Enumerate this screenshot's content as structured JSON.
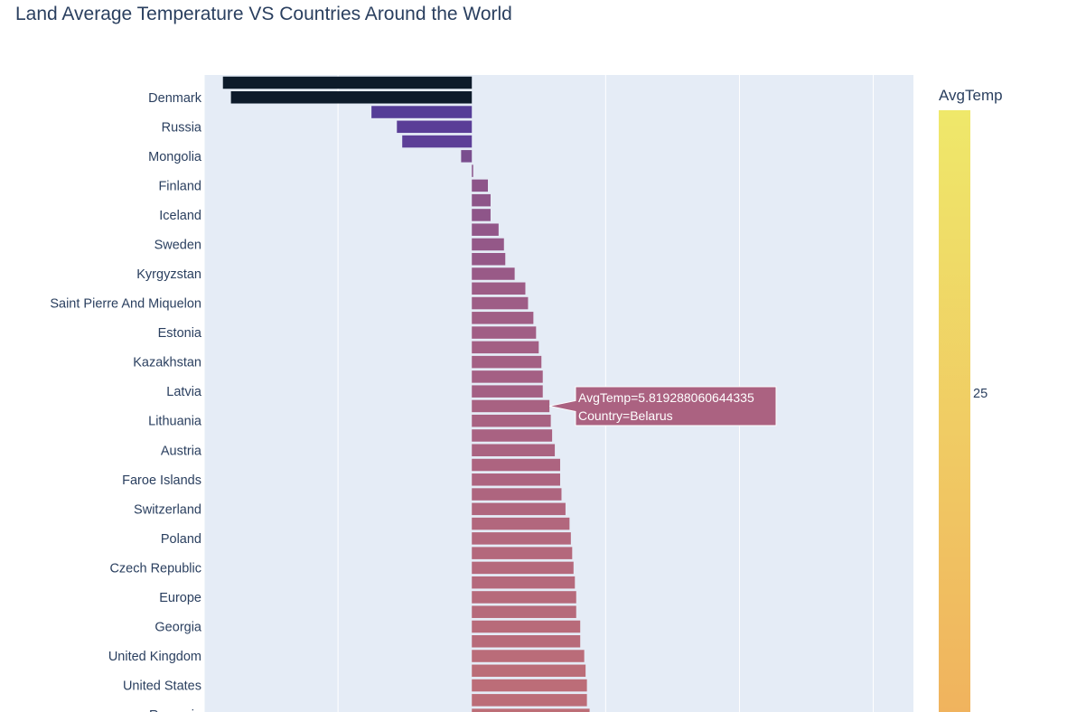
{
  "chart_data": {
    "type": "bar",
    "orientation": "horizontal",
    "title": "Land Average Temperature VS Countries Around the World",
    "xlabel": "",
    "ylabel": "",
    "xlim": [
      -20,
      33
    ],
    "x_gridlines": [
      -20,
      -10,
      0,
      10,
      20,
      30
    ],
    "grid": true,
    "color_scale": [
      "#0d0887",
      "#5a3d8f",
      "#a15c8a",
      "#cf6e79",
      "#eca05f",
      "#f0f921"
    ],
    "colorbar": {
      "title": "AvgTemp",
      "ticks": [
        25
      ],
      "colors": [
        "#f0b35e",
        "#efe86a"
      ]
    },
    "categories": [
      "",
      "Denmark",
      "",
      "Russia",
      "",
      "Mongolia",
      "",
      "Finland",
      "",
      "Iceland",
      "",
      "Sweden",
      "",
      "Kyrgyzstan",
      "",
      "Saint Pierre And Miquelon",
      "",
      "Estonia",
      "",
      "Kazakhstan",
      "",
      "Latvia",
      "",
      "Lithuania",
      "",
      "Austria",
      "",
      "Faroe Islands",
      "",
      "Switzerland",
      "",
      "Poland",
      "",
      "Czech Republic",
      "",
      "Europe",
      "",
      "Georgia",
      "",
      "United Kingdom",
      "",
      "United States",
      "",
      "Romania"
    ],
    "values": [
      -18.6,
      -18.0,
      -7.5,
      -5.6,
      -5.2,
      -0.8,
      0.1,
      1.2,
      1.4,
      1.4,
      2.0,
      2.4,
      2.5,
      3.2,
      4.0,
      4.2,
      4.6,
      4.8,
      5.0,
      5.2,
      5.3,
      5.3,
      5.8,
      5.9,
      6.0,
      6.2,
      6.6,
      6.6,
      6.7,
      7.0,
      7.3,
      7.4,
      7.5,
      7.6,
      7.7,
      7.8,
      7.8,
      8.1,
      8.1,
      8.4,
      8.5,
      8.6,
      8.6,
      8.8
    ],
    "colors": [
      "#0d1b2a",
      "#0d1b2a",
      "#553d97",
      "#5a3e97",
      "#5d3f97",
      "#7a4e8e",
      "#8a538a",
      "#8d5489",
      "#8e5589",
      "#8e5589",
      "#925789",
      "#945888",
      "#955888",
      "#995a87",
      "#9d5c86",
      "#9e5d86",
      "#a05e85",
      "#a15e85",
      "#a35f84",
      "#a46084",
      "#a46084",
      "#a46084",
      "#a86282",
      "#a86282",
      "#a96282",
      "#aa6381",
      "#ad6480",
      "#ad6480",
      "#ae657f",
      "#b0667e",
      "#b2677d",
      "#b3687d",
      "#b4687c",
      "#b5697c",
      "#b5697c",
      "#b66a7b",
      "#b66a7b",
      "#b86b7a",
      "#b86b7a",
      "#ba6c79",
      "#bb6d78",
      "#bc6d78",
      "#bc6d78",
      "#bd6e77"
    ]
  },
  "tooltip": {
    "line1": "AvgTemp=5.819288060644335",
    "line2": "Country=Belarus",
    "bar_index": 22
  }
}
